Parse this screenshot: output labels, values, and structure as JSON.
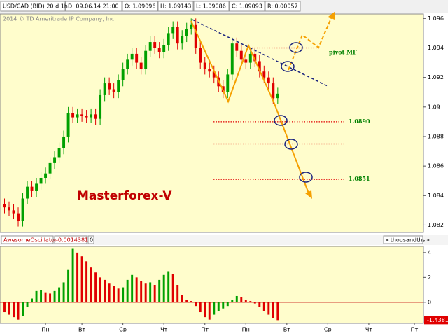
{
  "header": {
    "symbol": "USD/CAD (BID) 20 d 1h",
    "date": "D: 09.06.14 21:00",
    "open": "O: 1.09096",
    "high": "H: 1.09143",
    "low": "L: 1.09086",
    "close": "C: 1.09093",
    "range": "R: 0.00057"
  },
  "copyright": "2014 © TD Ameritrade IP Company, Inc.",
  "chart_data": [
    {
      "type": "candlestick",
      "annotation": "Masterforex-V",
      "up_color": "#00a000",
      "down_color": "#e00000",
      "x": [
        0,
        1,
        2,
        3,
        4,
        5,
        6,
        7,
        8,
        9,
        10,
        11,
        12,
        13,
        14,
        15,
        16,
        17,
        18,
        19,
        20,
        21,
        22,
        23,
        24,
        25,
        26,
        27,
        28,
        29,
        30,
        31,
        32,
        33,
        34,
        35,
        36,
        37,
        38,
        39,
        40,
        41,
        42,
        43,
        44,
        45,
        46,
        47,
        48,
        49,
        50,
        51,
        52,
        53,
        54,
        55,
        56,
        57,
        58,
        59,
        60
      ],
      "open": [
        1.0834,
        1.0832,
        1.083,
        1.0828,
        1.0823,
        1.0838,
        1.0846,
        1.0843,
        1.0848,
        1.0852,
        1.0855,
        1.0862,
        1.0866,
        1.0872,
        1.088,
        1.0896,
        1.0893,
        1.0895,
        1.0894,
        1.0893,
        1.0895,
        1.0892,
        1.0908,
        1.0916,
        1.0912,
        1.091,
        1.0918,
        1.0926,
        1.0932,
        1.0936,
        1.093,
        1.0926,
        1.0938,
        1.0944,
        1.094,
        1.0937,
        1.0942,
        1.095,
        1.0954,
        1.0943,
        1.0948,
        1.0953,
        1.0956,
        1.094,
        1.093,
        1.0926,
        1.0924,
        1.092,
        1.0914,
        1.091,
        1.0922,
        1.0943,
        1.0938,
        1.0932,
        1.093,
        1.0936,
        1.0931,
        1.0924,
        1.092,
        1.0916,
        1.0906
      ],
      "high": [
        1.0838,
        1.0836,
        1.0834,
        1.0832,
        1.0842,
        1.085,
        1.085,
        1.0852,
        1.0856,
        1.0859,
        1.0866,
        1.087,
        1.0876,
        1.0884,
        1.09,
        1.09,
        1.0899,
        1.0899,
        1.0898,
        1.0899,
        1.0899,
        1.0912,
        1.092,
        1.092,
        1.0916,
        1.0922,
        1.093,
        1.0936,
        1.094,
        1.094,
        1.0934,
        1.0942,
        1.0948,
        1.0948,
        1.0944,
        1.0946,
        1.0954,
        1.0958,
        1.0958,
        1.0952,
        1.0957,
        1.096,
        1.096,
        1.0944,
        1.0934,
        1.093,
        1.0928,
        1.0924,
        1.0918,
        1.0926,
        1.0947,
        1.0947,
        1.0942,
        1.0936,
        1.094,
        1.094,
        1.0935,
        1.0928,
        1.0924,
        1.092,
        1.0913
      ],
      "low": [
        1.0828,
        1.0826,
        1.0824,
        1.0819,
        1.0819,
        1.0834,
        1.0839,
        1.0839,
        1.0844,
        1.0848,
        1.0851,
        1.0858,
        1.0862,
        1.0868,
        1.0876,
        1.0889,
        1.0889,
        1.089,
        1.0889,
        1.0889,
        1.0888,
        1.0888,
        1.0904,
        1.0908,
        1.0906,
        1.0906,
        1.0914,
        1.0922,
        1.0928,
        1.0926,
        1.0922,
        1.0922,
        1.0934,
        1.0936,
        1.0933,
        1.0933,
        1.0938,
        1.0946,
        1.0939,
        1.0939,
        1.0944,
        1.0949,
        1.0936,
        1.0926,
        1.0922,
        1.092,
        1.0916,
        1.091,
        1.0906,
        1.0906,
        1.0918,
        1.0934,
        1.0928,
        1.0926,
        1.0926,
        1.0927,
        1.092,
        1.0916,
        1.0912,
        1.0902,
        1.0902
      ],
      "close": [
        1.0832,
        1.083,
        1.0828,
        1.0823,
        1.0838,
        1.0846,
        1.0843,
        1.0848,
        1.0852,
        1.0855,
        1.0862,
        1.0866,
        1.0872,
        1.088,
        1.0896,
        1.0893,
        1.0895,
        1.0894,
        1.0893,
        1.0895,
        1.0892,
        1.0908,
        1.0916,
        1.0912,
        1.091,
        1.0918,
        1.0926,
        1.0932,
        1.0936,
        1.093,
        1.0926,
        1.0938,
        1.0944,
        1.094,
        1.0937,
        1.0942,
        1.095,
        1.0954,
        1.0943,
        1.0948,
        1.0953,
        1.0956,
        1.094,
        1.093,
        1.0926,
        1.0924,
        1.092,
        1.0914,
        1.091,
        1.0922,
        1.0943,
        1.0938,
        1.0932,
        1.093,
        1.0936,
        1.0931,
        1.0924,
        1.092,
        1.0916,
        1.0906,
        1.0909
      ],
      "xlim": [
        -1,
        92
      ],
      "ylim": [
        1.0815,
        1.0963
      ],
      "yticks": [
        1.096,
        1.094,
        1.092,
        1.09,
        1.088,
        1.086,
        1.084,
        1.082
      ],
      "levels": [
        {
          "value": 1.094,
          "label": "pivot MF"
        },
        {
          "value": 1.089,
          "label": "1.0890"
        },
        {
          "value": 1.0875
        },
        {
          "value": 1.0851,
          "label": "1.0851"
        }
      ],
      "level_color": "#e00000",
      "level_label_color": "#008000"
    },
    {
      "type": "bar",
      "name": "AwesomeOscillator",
      "header_value": "-0.0014381",
      "header_param": "0",
      "units": "<thousandths>",
      "up_color": "#00a000",
      "down_color": "#e00000",
      "x": [
        0,
        1,
        2,
        3,
        4,
        5,
        6,
        7,
        8,
        9,
        10,
        11,
        12,
        13,
        14,
        15,
        16,
        17,
        18,
        19,
        20,
        21,
        22,
        23,
        24,
        25,
        26,
        27,
        28,
        29,
        30,
        31,
        32,
        33,
        34,
        35,
        36,
        37,
        38,
        39,
        40,
        41,
        42,
        43,
        44,
        45,
        46,
        47,
        48,
        49,
        50,
        51,
        52,
        53,
        54,
        55,
        56,
        57,
        58,
        59,
        60
      ],
      "values": [
        -0.8,
        -1.0,
        -1.2,
        -1.4,
        -1.1,
        -0.4,
        0.3,
        0.9,
        1.0,
        0.8,
        0.7,
        0.9,
        1.2,
        1.6,
        2.6,
        4.3,
        4.0,
        3.7,
        3.3,
        2.8,
        2.4,
        2.0,
        1.8,
        1.5,
        1.3,
        1.1,
        1.2,
        1.8,
        2.2,
        2.0,
        1.7,
        1.5,
        1.6,
        1.4,
        1.8,
        2.2,
        2.5,
        2.3,
        1.4,
        0.6,
        0.2,
        0.1,
        -0.3,
        -0.8,
        -1.2,
        -1.4,
        -1.0,
        -0.7,
        -0.5,
        -0.3,
        0.2,
        0.5,
        0.4,
        0.2,
        0.1,
        -0.1,
        -0.4,
        -0.7,
        -1.0,
        -1.3,
        -1.4381
      ],
      "last_value_label": "-1.4381",
      "xlim": [
        -1,
        92
      ],
      "ylim": [
        -1.7,
        4.5
      ],
      "yticks": [
        4,
        2,
        0
      ],
      "xticks": [
        {
          "value": 9,
          "label": "Пн"
        },
        {
          "value": 17,
          "label": "Вт"
        },
        {
          "value": 26,
          "label": "Ср"
        },
        {
          "value": 35,
          "label": "Чт"
        },
        {
          "value": 44,
          "label": "Пт"
        },
        {
          "value": 53,
          "label": "Пн"
        },
        {
          "value": 62,
          "label": "Вт"
        },
        {
          "value": 71,
          "label": "Ср"
        },
        {
          "value": 80,
          "label": "Чт"
        },
        {
          "value": 90,
          "label": "Пт"
        }
      ]
    }
  ]
}
